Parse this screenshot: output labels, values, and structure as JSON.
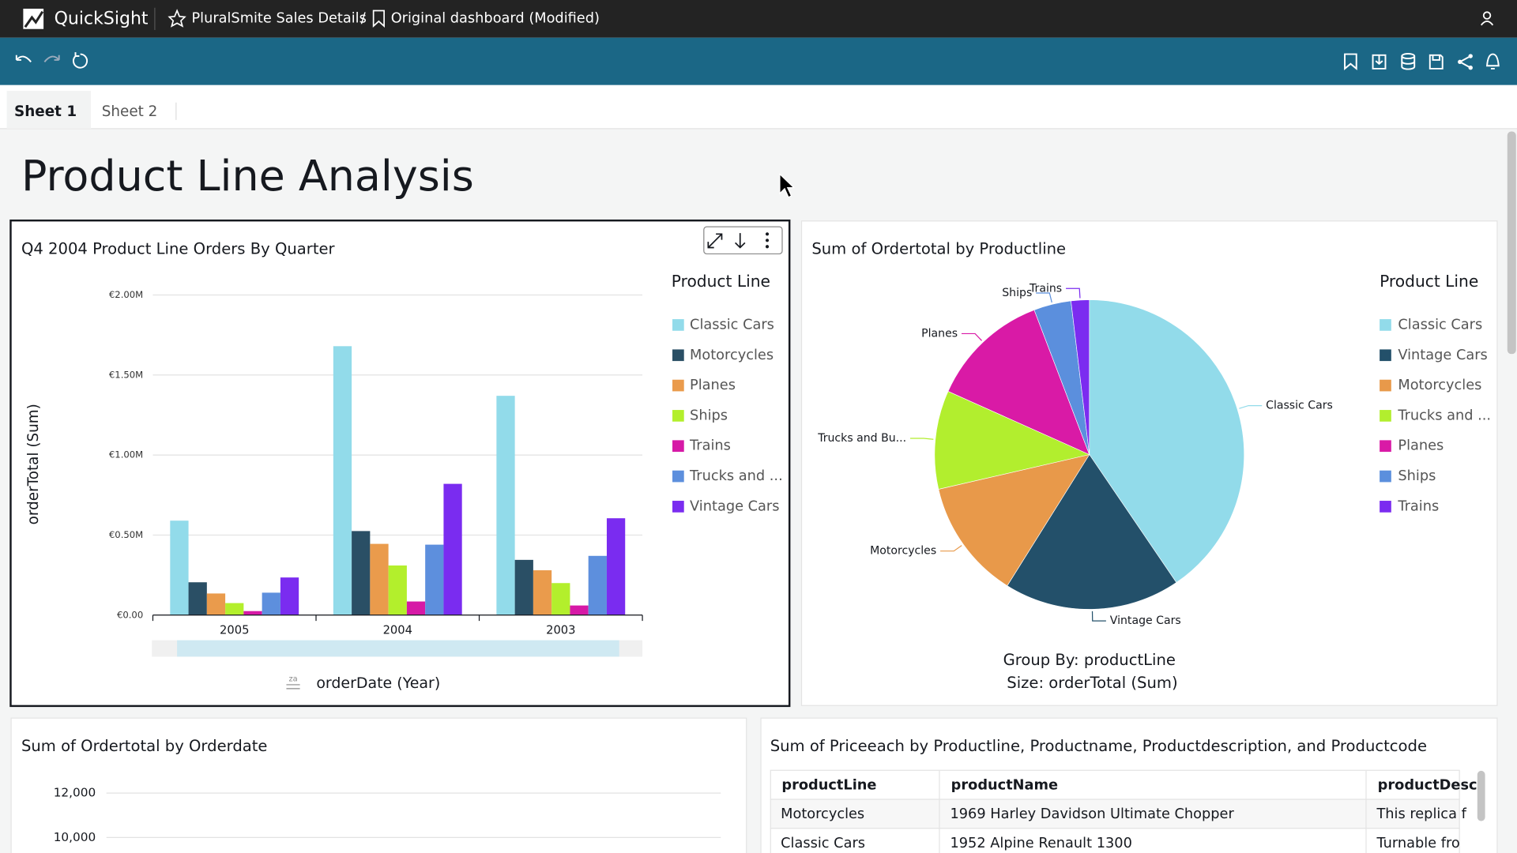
{
  "header": {
    "app": "QuickSight",
    "dashboard": "PluralSmite Sales Details",
    "separator": "/",
    "view": "Original dashboard (Modified)"
  },
  "tabs": [
    "Sheet 1",
    "Sheet 2"
  ],
  "page_title": "Product Line Analysis",
  "chart_data": [
    {
      "type": "bar",
      "title": "Q4 2004 Product Line Orders By Quarter",
      "categories": [
        "2005",
        "2004",
        "2003"
      ],
      "series": [
        {
          "name": "Classic Cars",
          "color": "#92dbea",
          "values": [
            590000,
            1680000,
            1370000
          ]
        },
        {
          "name": "Motorcycles",
          "color": "#2a4f65",
          "values": [
            205000,
            525000,
            345000
          ]
        },
        {
          "name": "Planes",
          "color": "#ea9b4c",
          "values": [
            135000,
            445000,
            280000
          ]
        },
        {
          "name": "Ships",
          "color": "#b3ef2c",
          "values": [
            75000,
            310000,
            200000
          ]
        },
        {
          "name": "Trains",
          "color": "#d619a6",
          "values": [
            25000,
            85000,
            60000
          ]
        },
        {
          "name": "Trucks and ...",
          "color": "#5d8fdd",
          "values": [
            140000,
            440000,
            370000
          ]
        },
        {
          "name": "Vintage Cars",
          "color": "#7a2cf0",
          "values": [
            235000,
            820000,
            605000
          ]
        }
      ],
      "ylim": [
        0,
        2000000
      ],
      "yticks": [
        {
          "value": 0,
          "label": "€0.00"
        },
        {
          "value": 500000,
          "label": "€0.50M"
        },
        {
          "value": 1000000,
          "label": "€1.00M"
        },
        {
          "value": 1500000,
          "label": "€1.50M"
        },
        {
          "value": 2000000,
          "label": "€2.00M"
        }
      ],
      "y_label": "orderTotal (Sum)",
      "x_label": "orderDate (Year)",
      "legend_title": "Product Line",
      "legend": "right",
      "grid": true
    },
    {
      "type": "pie",
      "title": "Sum of Ordertotal by Productline",
      "categories": [
        "Classic Cars",
        "Vintage Cars",
        "Motorcycles",
        "Trucks and ...",
        "Planes",
        "Ships",
        "Trains"
      ],
      "slice_labels": [
        "Classic Cars",
        "Vintage Cars",
        "Motorcycles",
        "Trucks and Bu...",
        "Planes",
        "Ships",
        "Trains"
      ],
      "values": [
        40.5,
        18.4,
        12.5,
        10.3,
        12.5,
        3.9,
        1.9
      ],
      "colors": [
        "#92dbea",
        "#23506a",
        "#e8994a",
        "#b2ee2e",
        "#d91aa6",
        "#5b8fdd",
        "#7b2cf0"
      ],
      "legend_title": "Product Line",
      "legend": "right",
      "group_by": "Group By: productLine",
      "size": "Size: orderTotal (Sum)"
    },
    {
      "type": "line",
      "title": "Sum of Ordertotal by Orderdate",
      "yticks": [
        {
          "value": 12000,
          "label": "12,000"
        },
        {
          "value": 10000,
          "label": "10,000"
        }
      ],
      "grid": true
    }
  ],
  "table": {
    "title": "Sum of Priceeach by Productline, Productname, Productdescription, and Productcode",
    "columns": [
      "productLine",
      "productName",
      "productDesc"
    ],
    "rows": [
      [
        "Motorcycles",
        "1969 Harley Davidson Ultimate Chopper",
        "This replica f"
      ],
      [
        "Classic Cars",
        "1952 Alpine Renault 1300",
        "Turnable fro"
      ]
    ]
  }
}
